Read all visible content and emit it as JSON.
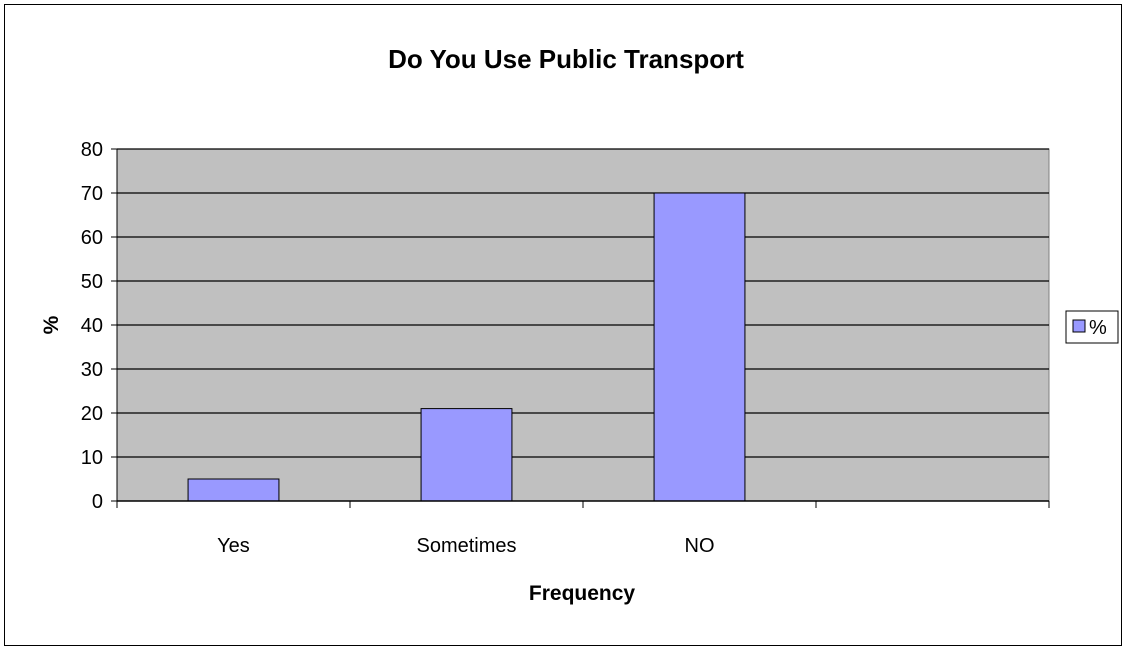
{
  "chart_data": {
    "type": "bar",
    "title": "Do You Use Public Transport",
    "xlabel": "Frequency",
    "ylabel": "%",
    "categories": [
      "Yes",
      "Sometimes",
      "NO",
      ""
    ],
    "series": [
      {
        "name": "%",
        "values": [
          5,
          21,
          70,
          null
        ]
      }
    ],
    "ylim": [
      0,
      80
    ],
    "yticks": [
      0,
      10,
      20,
      30,
      40,
      50,
      60,
      70,
      80
    ],
    "grid": true,
    "legend": "right",
    "colors": {
      "bar_fill": "#9999ff",
      "plot_background": "#c0c0c0",
      "gridline": "#000000"
    }
  }
}
